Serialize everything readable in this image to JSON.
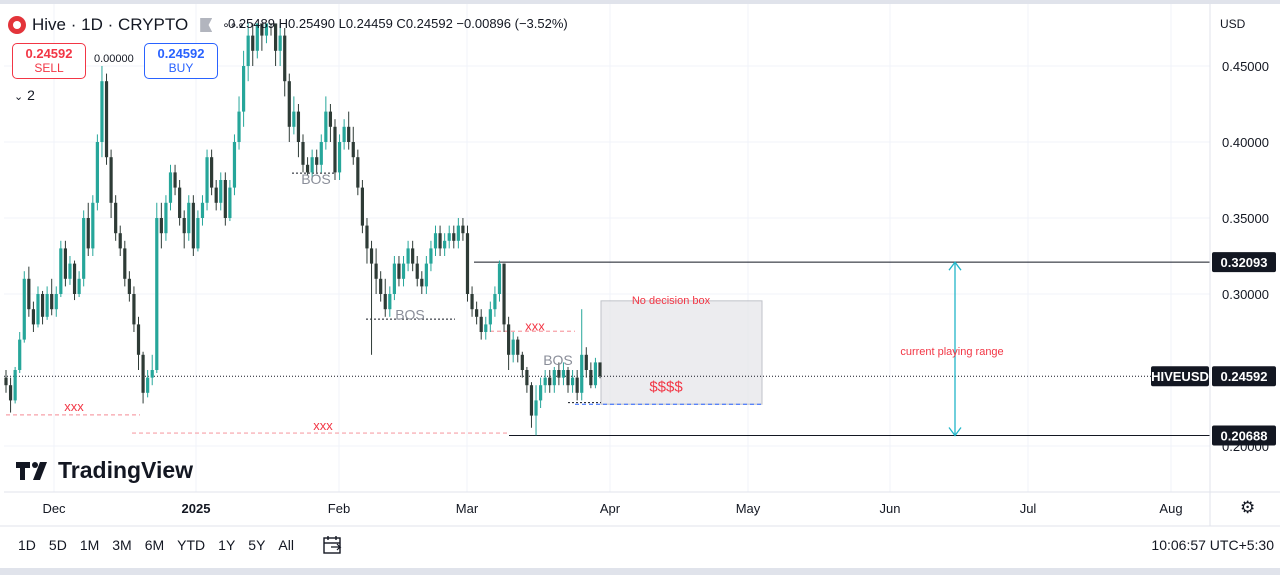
{
  "header": {
    "symbol_title": "Hive · 1D · CRYPTO",
    "ohlc_text": "0.25489 H0.25490 L0.24459 C0.24592 −0.00896 (−3.52%)",
    "sell_price": "0.24592",
    "sell_label": "SELL",
    "spread": "0.00000",
    "buy_price": "0.24592",
    "buy_label": "BUY",
    "collapse_label": "2",
    "currency": "USD"
  },
  "brand": {
    "name": "TradingView"
  },
  "bottom_bar": {
    "timeframes": [
      "1D",
      "5D",
      "1M",
      "3M",
      "6M",
      "YTD",
      "1Y",
      "5Y",
      "All"
    ],
    "clock": "10:06:57 UTC+5:30"
  },
  "colors": {
    "up": "#26a69a",
    "down": "#2e3b36",
    "accent_red": "#f23645",
    "blue": "#2962ff",
    "range_arrow": "#22b5c8"
  },
  "chart_data": {
    "type": "candlestick",
    "title": "Hive · 1D · CRYPTO",
    "y_axis": {
      "ticks": [
        "0.45000",
        "0.40000",
        "0.35000",
        "0.30000",
        "0.20000"
      ],
      "ylim": [
        0.19,
        0.47
      ],
      "position": "right"
    },
    "x_axis": {
      "ticks": [
        "Dec",
        "2025",
        "Feb",
        "Mar",
        "Apr",
        "May",
        "Jun",
        "Jul",
        "Aug"
      ]
    },
    "price_labels": [
      {
        "text": "0.32093",
        "value": 0.32093
      },
      {
        "text": "HIVEUSD",
        "value": 0.24592
      },
      {
        "text": "0.24592",
        "value": 0.24592
      },
      {
        "text": "0.20688",
        "value": 0.20688
      }
    ],
    "annotations": [
      {
        "text": "BOS",
        "value": 0.375
      },
      {
        "text": "BOS",
        "value": 0.286
      },
      {
        "text": "BOS",
        "value": 0.256
      },
      {
        "text": "xxx",
        "value": 0.2255
      },
      {
        "text": "xxx",
        "value": 0.213
      },
      {
        "text": "xxx",
        "value": 0.2785
      },
      {
        "text": "No decision box",
        "value": 0.296
      },
      {
        "text": "$$$$",
        "value": 0.2385
      },
      {
        "text": "current playing range",
        "value": 0.2625
      }
    ],
    "candles": [
      [
        0.245,
        0.24,
        0.25,
        0.235
      ],
      [
        0.24,
        0.23,
        0.245,
        0.222
      ],
      [
        0.23,
        0.25,
        0.252,
        0.228
      ],
      [
        0.25,
        0.27,
        0.275,
        0.248
      ],
      [
        0.27,
        0.31,
        0.315,
        0.268
      ],
      [
        0.31,
        0.29,
        0.318,
        0.285
      ],
      [
        0.29,
        0.28,
        0.295,
        0.275
      ],
      [
        0.28,
        0.3,
        0.305,
        0.278
      ],
      [
        0.3,
        0.285,
        0.302,
        0.28
      ],
      [
        0.285,
        0.3,
        0.305,
        0.283
      ],
      [
        0.3,
        0.29,
        0.31,
        0.286
      ],
      [
        0.29,
        0.3,
        0.305,
        0.285
      ],
      [
        0.3,
        0.33,
        0.335,
        0.298
      ],
      [
        0.33,
        0.31,
        0.335,
        0.305
      ],
      [
        0.31,
        0.32,
        0.325,
        0.306
      ],
      [
        0.32,
        0.3,
        0.322,
        0.296
      ],
      [
        0.3,
        0.31,
        0.315,
        0.298
      ],
      [
        0.31,
        0.35,
        0.355,
        0.305
      ],
      [
        0.35,
        0.33,
        0.36,
        0.325
      ],
      [
        0.33,
        0.36,
        0.365,
        0.325
      ],
      [
        0.36,
        0.4,
        0.405,
        0.355
      ],
      [
        0.4,
        0.44,
        0.45,
        0.39
      ],
      [
        0.44,
        0.39,
        0.445,
        0.385
      ],
      [
        0.39,
        0.36,
        0.395,
        0.35
      ],
      [
        0.36,
        0.34,
        0.365,
        0.335
      ],
      [
        0.34,
        0.33,
        0.345,
        0.325
      ],
      [
        0.33,
        0.31,
        0.335,
        0.305
      ],
      [
        0.31,
        0.3,
        0.315,
        0.295
      ],
      [
        0.3,
        0.28,
        0.305,
        0.275
      ],
      [
        0.28,
        0.26,
        0.285,
        0.25
      ],
      [
        0.26,
        0.235,
        0.262,
        0.228
      ],
      [
        0.235,
        0.245,
        0.25,
        0.232
      ],
      [
        0.245,
        0.25,
        0.26,
        0.24
      ],
      [
        0.25,
        0.35,
        0.36,
        0.248
      ],
      [
        0.35,
        0.34,
        0.36,
        0.33
      ],
      [
        0.34,
        0.36,
        0.365,
        0.335
      ],
      [
        0.36,
        0.38,
        0.385,
        0.355
      ],
      [
        0.38,
        0.37,
        0.385,
        0.365
      ],
      [
        0.37,
        0.35,
        0.375,
        0.345
      ],
      [
        0.35,
        0.34,
        0.355,
        0.33
      ],
      [
        0.34,
        0.36,
        0.365,
        0.335
      ],
      [
        0.36,
        0.33,
        0.365,
        0.325
      ],
      [
        0.33,
        0.35,
        0.355,
        0.328
      ],
      [
        0.35,
        0.36,
        0.365,
        0.345
      ],
      [
        0.36,
        0.39,
        0.395,
        0.355
      ],
      [
        0.39,
        0.37,
        0.395,
        0.365
      ],
      [
        0.37,
        0.36,
        0.375,
        0.355
      ],
      [
        0.36,
        0.375,
        0.38,
        0.355
      ],
      [
        0.375,
        0.35,
        0.38,
        0.345
      ],
      [
        0.35,
        0.37,
        0.375,
        0.348
      ],
      [
        0.37,
        0.4,
        0.405,
        0.365
      ],
      [
        0.4,
        0.42,
        0.43,
        0.395
      ],
      [
        0.42,
        0.45,
        0.46,
        0.41
      ],
      [
        0.45,
        0.47,
        0.48,
        0.44
      ],
      [
        0.47,
        0.46,
        0.48,
        0.45
      ],
      [
        0.46,
        0.5,
        0.51,
        0.455
      ],
      [
        0.5,
        0.47,
        0.505,
        0.46
      ],
      [
        0.47,
        0.49,
        0.5,
        0.465
      ],
      [
        0.49,
        0.48,
        0.5,
        0.47
      ],
      [
        0.48,
        0.46,
        0.49,
        0.45
      ],
      [
        0.46,
        0.47,
        0.48,
        0.45
      ],
      [
        0.47,
        0.44,
        0.475,
        0.43
      ],
      [
        0.44,
        0.41,
        0.445,
        0.4
      ],
      [
        0.41,
        0.42,
        0.43,
        0.405
      ],
      [
        0.42,
        0.4,
        0.425,
        0.39
      ],
      [
        0.4,
        0.385,
        0.405,
        0.38
      ],
      [
        0.385,
        0.38,
        0.39,
        0.378
      ],
      [
        0.38,
        0.39,
        0.395,
        0.375
      ],
      [
        0.39,
        0.385,
        0.395,
        0.38
      ],
      [
        0.385,
        0.4,
        0.405,
        0.38
      ],
      [
        0.4,
        0.42,
        0.43,
        0.395
      ],
      [
        0.42,
        0.41,
        0.425,
        0.4
      ],
      [
        0.41,
        0.38,
        0.415,
        0.375
      ],
      [
        0.38,
        0.4,
        0.405,
        0.375
      ],
      [
        0.4,
        0.41,
        0.415,
        0.395
      ],
      [
        0.41,
        0.4,
        0.42,
        0.395
      ],
      [
        0.4,
        0.39,
        0.41,
        0.385
      ],
      [
        0.39,
        0.37,
        0.395,
        0.365
      ],
      [
        0.37,
        0.345,
        0.375,
        0.34
      ],
      [
        0.345,
        0.33,
        0.35,
        0.32
      ],
      [
        0.33,
        0.32,
        0.335,
        0.26
      ],
      [
        0.32,
        0.31,
        0.33,
        0.3
      ],
      [
        0.31,
        0.3,
        0.315,
        0.295
      ],
      [
        0.3,
        0.29,
        0.31,
        0.285
      ],
      [
        0.29,
        0.3,
        0.305,
        0.285
      ],
      [
        0.3,
        0.32,
        0.325,
        0.296
      ],
      [
        0.32,
        0.31,
        0.325,
        0.305
      ],
      [
        0.31,
        0.32,
        0.325,
        0.305
      ],
      [
        0.32,
        0.33,
        0.335,
        0.315
      ],
      [
        0.33,
        0.32,
        0.335,
        0.315
      ],
      [
        0.32,
        0.31,
        0.325,
        0.305
      ],
      [
        0.31,
        0.305,
        0.315,
        0.3
      ],
      [
        0.305,
        0.32,
        0.325,
        0.3
      ],
      [
        0.32,
        0.33,
        0.335,
        0.315
      ],
      [
        0.33,
        0.34,
        0.345,
        0.325
      ],
      [
        0.34,
        0.33,
        0.345,
        0.325
      ],
      [
        0.33,
        0.335,
        0.34,
        0.325
      ],
      [
        0.335,
        0.34,
        0.345,
        0.33
      ],
      [
        0.34,
        0.335,
        0.345,
        0.33
      ],
      [
        0.335,
        0.345,
        0.35,
        0.33
      ],
      [
        0.345,
        0.34,
        0.35,
        0.335
      ],
      [
        0.34,
        0.3,
        0.345,
        0.295
      ],
      [
        0.3,
        0.29,
        0.305,
        0.285
      ],
      [
        0.29,
        0.285,
        0.295,
        0.28
      ],
      [
        0.285,
        0.275,
        0.29,
        0.27
      ],
      [
        0.275,
        0.28,
        0.285,
        0.27
      ],
      [
        0.28,
        0.29,
        0.295,
        0.275
      ],
      [
        0.29,
        0.3,
        0.305,
        0.285
      ],
      [
        0.3,
        0.32,
        0.322,
        0.295
      ],
      [
        0.32,
        0.28,
        0.32,
        0.275
      ],
      [
        0.28,
        0.26,
        0.285,
        0.25
      ],
      [
        0.26,
        0.27,
        0.275,
        0.255
      ],
      [
        0.27,
        0.26,
        0.272,
        0.255
      ],
      [
        0.26,
        0.25,
        0.262,
        0.245
      ],
      [
        0.25,
        0.24,
        0.252,
        0.235
      ],
      [
        0.24,
        0.22,
        0.242,
        0.212
      ],
      [
        0.22,
        0.23,
        0.24,
        0.207
      ],
      [
        0.23,
        0.24,
        0.245,
        0.225
      ],
      [
        0.24,
        0.245,
        0.25,
        0.235
      ],
      [
        0.245,
        0.24,
        0.25,
        0.235
      ],
      [
        0.24,
        0.25,
        0.252,
        0.235
      ],
      [
        0.25,
        0.245,
        0.255,
        0.24
      ],
      [
        0.245,
        0.25,
        0.255,
        0.24
      ],
      [
        0.25,
        0.24,
        0.252,
        0.235
      ],
      [
        0.24,
        0.245,
        0.25,
        0.235
      ],
      [
        0.245,
        0.235,
        0.25,
        0.23
      ],
      [
        0.235,
        0.26,
        0.29,
        0.23
      ],
      [
        0.26,
        0.25,
        0.265,
        0.245
      ],
      [
        0.25,
        0.24,
        0.255,
        0.238
      ],
      [
        0.24,
        0.255,
        0.258,
        0.238
      ],
      [
        0.255,
        0.24592,
        0.2549,
        0.24459
      ]
    ]
  }
}
